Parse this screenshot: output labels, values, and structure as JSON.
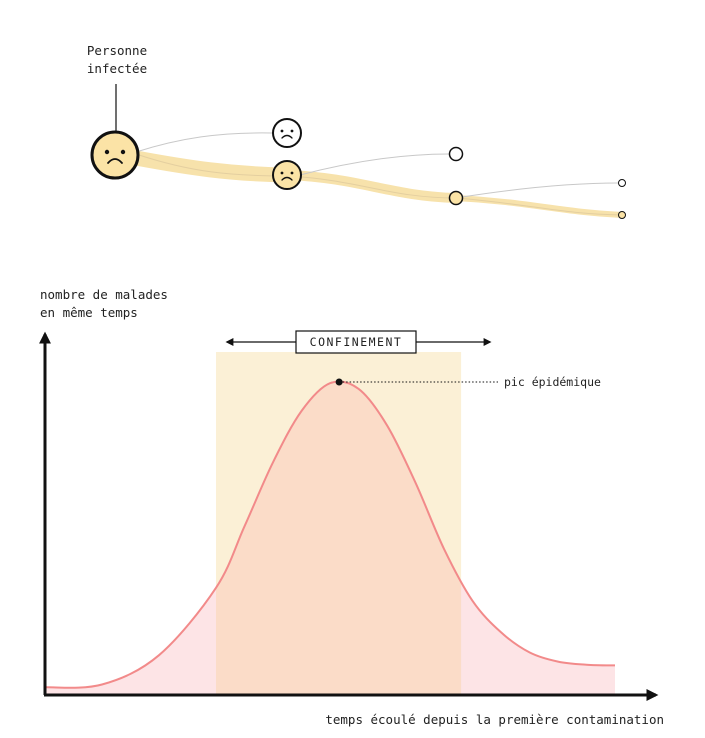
{
  "transmission": {
    "source_label_line1": "Personne",
    "source_label_line2": "infectée"
  },
  "chart": {
    "ylabel_line1": "nombre de malades",
    "ylabel_line2": "en même temps",
    "xlabel": "temps écoulé depuis la première contamination",
    "confinement_label": "CONFINEMENT",
    "peak_label": "pic épidémique"
  },
  "colors": {
    "curve": "#f28a8a",
    "curve_fill": "#fde4e6",
    "confinement_band": "#fbf0d6",
    "overlap_fill": "#fbdcc8",
    "infected": "#fbe3a6",
    "infected_path": "#f7e2ab",
    "axis": "#111111",
    "outline": "#111111"
  },
  "chart_data": {
    "type": "area",
    "xlabel": "temps écoulé depuis la première contamination",
    "ylabel": "nombre de malades en même temps",
    "x_ticks": [],
    "y_ticks": [],
    "confinement": {
      "start": 0.3,
      "end": 0.73
    },
    "peak": {
      "x": 0.516,
      "y": 1.0,
      "label": "pic épidémique"
    },
    "series": [
      {
        "values": [
          {
            "x": 0.0,
            "y": 0.012
          },
          {
            "x": 0.1,
            "y": 0.021
          },
          {
            "x": 0.2,
            "y": 0.116
          },
          {
            "x": 0.3,
            "y": 0.334
          },
          {
            "x": 0.35,
            "y": 0.533
          },
          {
            "x": 0.4,
            "y": 0.74
          },
          {
            "x": 0.45,
            "y": 0.906
          },
          {
            "x": 0.5,
            "y": 0.996
          },
          {
            "x": 0.55,
            "y": 0.978
          },
          {
            "x": 0.6,
            "y": 0.86
          },
          {
            "x": 0.65,
            "y": 0.674
          },
          {
            "x": 0.7,
            "y": 0.46
          },
          {
            "x": 0.75,
            "y": 0.292
          },
          {
            "x": 0.8,
            "y": 0.19
          },
          {
            "x": 0.85,
            "y": 0.125
          },
          {
            "x": 0.9,
            "y": 0.095
          },
          {
            "x": 0.95,
            "y": 0.085
          },
          {
            "x": 1.0,
            "y": 0.083
          }
        ]
      }
    ]
  }
}
